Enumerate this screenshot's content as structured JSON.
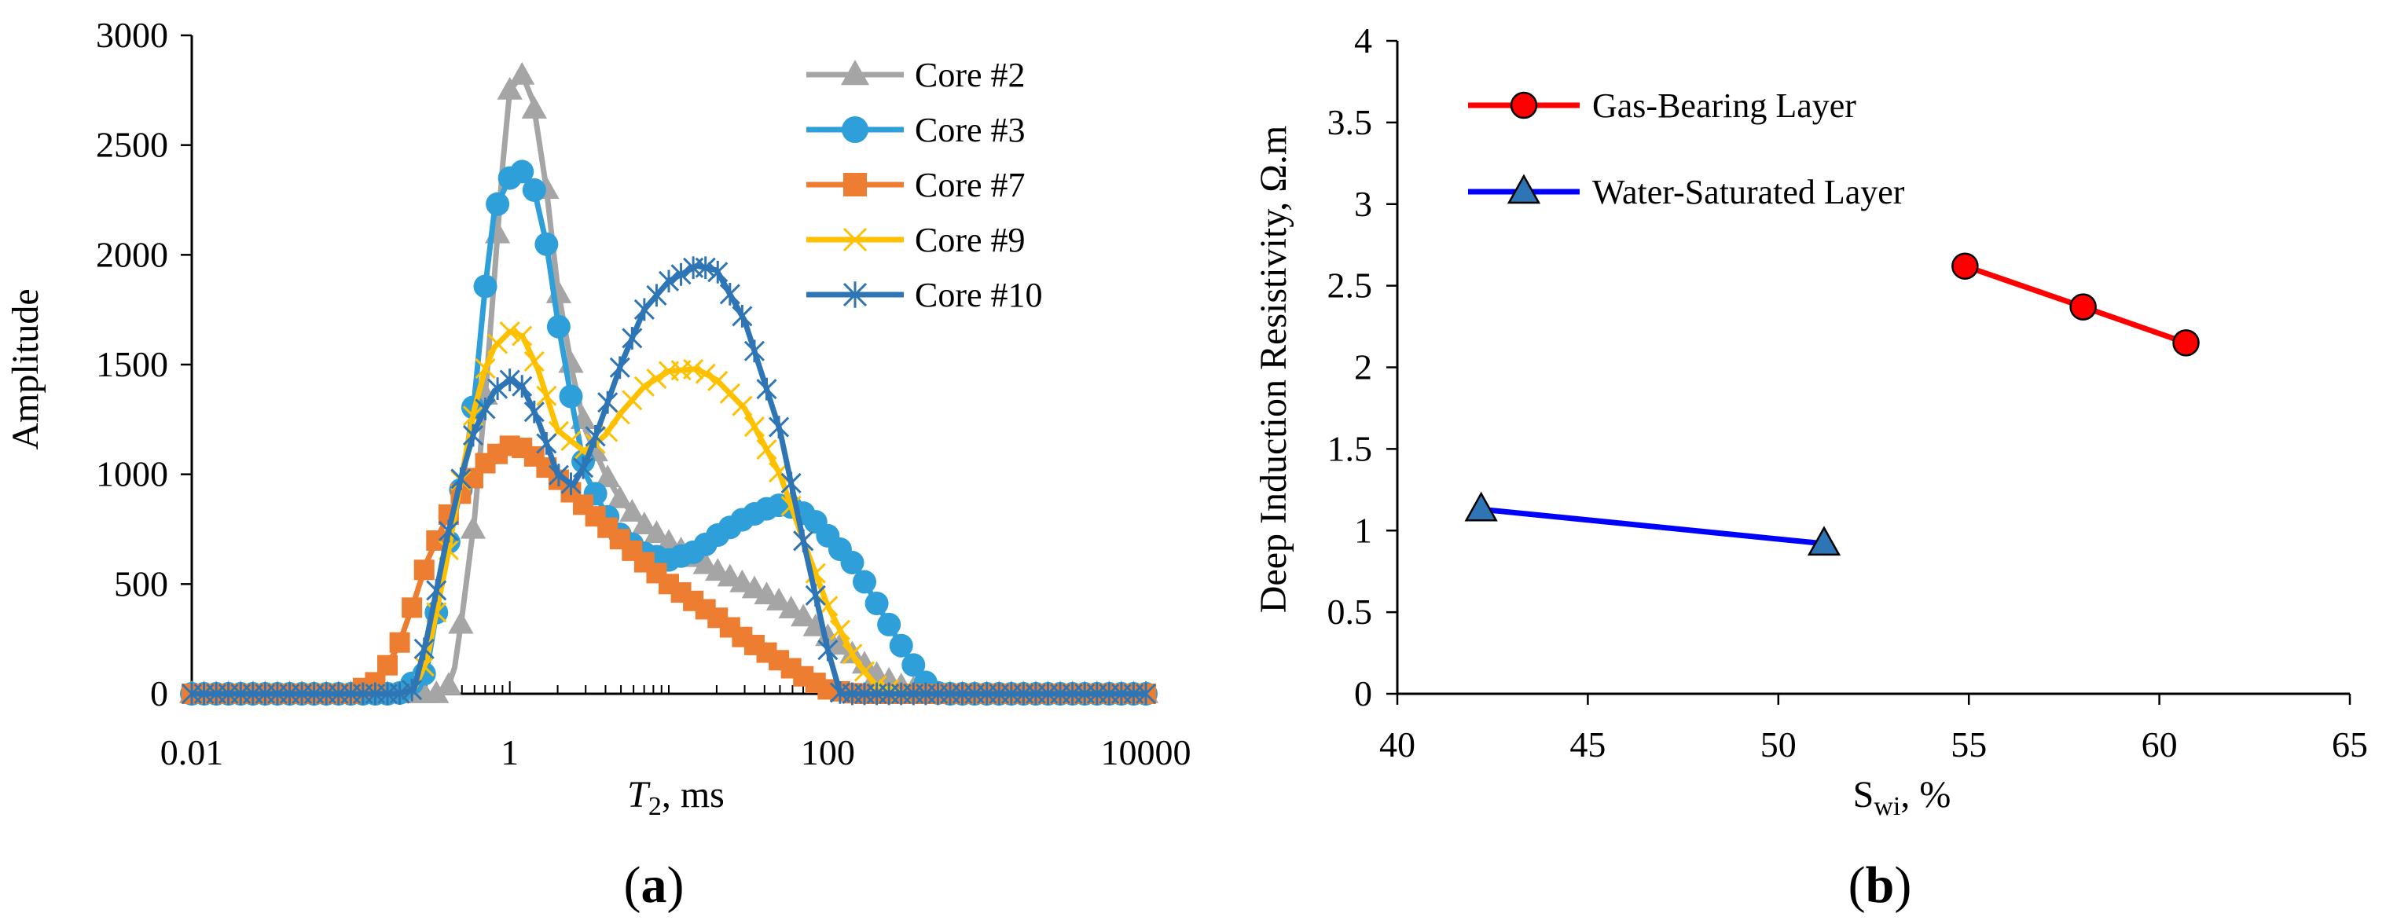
{
  "panels": {
    "a": {
      "label_open": "(",
      "label_letter": "a",
      "label_close": ")"
    },
    "b": {
      "label_open": "(",
      "label_letter": "b",
      "label_close": ")"
    }
  },
  "chart_data": [
    {
      "id": "a",
      "type": "line",
      "title": "",
      "xlabel": "T2, ms",
      "xlabel_italic": "T",
      "xlabel_sub": "2",
      "xlabel_rest": ", ms",
      "ylabel": "Amplitude",
      "xscale": "log",
      "xlim": [
        0.01,
        10000
      ],
      "ylim": [
        0,
        3000
      ],
      "xticks": [
        0.01,
        1,
        100,
        10000
      ],
      "xtick_labels": [
        "0.01",
        "1",
        "100",
        "10000"
      ],
      "yticks": [
        0,
        500,
        1000,
        1500,
        2000,
        2500,
        3000
      ],
      "ytick_labels": [
        "0",
        "500",
        "1000",
        "1500",
        "2000",
        "2500",
        "3000"
      ],
      "legend_position": "top-right",
      "grid": false,
      "series": [
        {
          "name": "Core #2",
          "color": "#a5a5a5",
          "marker": "triangle",
          "points": [
            [
              0.01,
              0
            ],
            [
              0.02,
              0
            ],
            [
              0.05,
              0
            ],
            [
              0.1,
              0
            ],
            [
              0.2,
              0
            ],
            [
              0.3,
              0
            ],
            [
              0.35,
              0
            ],
            [
              0.4,
              10
            ],
            [
              0.45,
              120
            ],
            [
              0.5,
              350
            ],
            [
              0.6,
              800
            ],
            [
              0.7,
              1350
            ],
            [
              0.8,
              1900
            ],
            [
              0.9,
              2400
            ],
            [
              1.0,
              2750
            ],
            [
              1.2,
              2820
            ],
            [
              1.4,
              2700
            ],
            [
              1.7,
              2300
            ],
            [
              2.0,
              1850
            ],
            [
              2.5,
              1450
            ],
            [
              3,
              1200
            ],
            [
              4,
              1000
            ],
            [
              5,
              880
            ],
            [
              7,
              770
            ],
            [
              10,
              690
            ],
            [
              15,
              610
            ],
            [
              20,
              560
            ],
            [
              30,
              500
            ],
            [
              50,
              420
            ],
            [
              70,
              350
            ],
            [
              100,
              260
            ],
            [
              150,
              170
            ],
            [
              200,
              90
            ],
            [
              300,
              30
            ],
            [
              500,
              0
            ],
            [
              1000,
              0
            ],
            [
              2000,
              0
            ],
            [
              5000,
              0
            ],
            [
              10000,
              0
            ]
          ]
        },
        {
          "name": "Core #3",
          "color": "#2e9fd8",
          "marker": "circle",
          "points": [
            [
              0.01,
              0
            ],
            [
              0.05,
              0
            ],
            [
              0.1,
              0
            ],
            [
              0.2,
              0
            ],
            [
              0.3,
              100
            ],
            [
              0.4,
              650
            ],
            [
              0.5,
              950
            ],
            [
              0.6,
              1350
            ],
            [
              0.7,
              1850
            ],
            [
              0.8,
              2200
            ],
            [
              0.9,
              2280
            ],
            [
              1.0,
              2350
            ],
            [
              1.2,
              2380
            ],
            [
              1.4,
              2320
            ],
            [
              1.7,
              2050
            ],
            [
              2.0,
              1700
            ],
            [
              2.5,
              1300
            ],
            [
              3,
              1000
            ],
            [
              4,
              820
            ],
            [
              5,
              720
            ],
            [
              7,
              640
            ],
            [
              10,
              610
            ],
            [
              15,
              650
            ],
            [
              20,
              720
            ],
            [
              30,
              800
            ],
            [
              40,
              840
            ],
            [
              50,
              860
            ],
            [
              60,
              850
            ],
            [
              80,
              800
            ],
            [
              100,
              720
            ],
            [
              150,
              580
            ],
            [
              200,
              420
            ],
            [
              300,
              200
            ],
            [
              400,
              60
            ],
            [
              500,
              0
            ],
            [
              1000,
              0
            ],
            [
              2000,
              0
            ],
            [
              5000,
              0
            ],
            [
              10000,
              0
            ]
          ]
        },
        {
          "name": "Core #7",
          "color": "#ed7d31",
          "marker": "square",
          "points": [
            [
              0.01,
              0
            ],
            [
              0.05,
              0
            ],
            [
              0.1,
              0
            ],
            [
              0.15,
              60
            ],
            [
              0.2,
              220
            ],
            [
              0.25,
              420
            ],
            [
              0.3,
              600
            ],
            [
              0.4,
              800
            ],
            [
              0.5,
              920
            ],
            [
              0.7,
              1050
            ],
            [
              0.9,
              1110
            ],
            [
              1.0,
              1130
            ],
            [
              1.2,
              1120
            ],
            [
              1.5,
              1070
            ],
            [
              2,
              980
            ],
            [
              3,
              850
            ],
            [
              5,
              700
            ],
            [
              7,
              600
            ],
            [
              10,
              500
            ],
            [
              20,
              350
            ],
            [
              30,
              250
            ],
            [
              50,
              150
            ],
            [
              70,
              80
            ],
            [
              100,
              20
            ],
            [
              150,
              0
            ],
            [
              300,
              0
            ],
            [
              1000,
              0
            ],
            [
              3000,
              0
            ],
            [
              10000,
              0
            ]
          ]
        },
        {
          "name": "Core #9",
          "color": "#ffc000",
          "marker": "x",
          "points": [
            [
              0.01,
              0
            ],
            [
              0.05,
              0
            ],
            [
              0.1,
              0
            ],
            [
              0.2,
              0
            ],
            [
              0.25,
              20
            ],
            [
              0.3,
              150
            ],
            [
              0.4,
              600
            ],
            [
              0.5,
              1000
            ],
            [
              0.6,
              1300
            ],
            [
              0.7,
              1480
            ],
            [
              0.8,
              1580
            ],
            [
              1.0,
              1650
            ],
            [
              1.2,
              1630
            ],
            [
              1.5,
              1480
            ],
            [
              2,
              1200
            ],
            [
              3,
              1100
            ],
            [
              4,
              1180
            ],
            [
              5,
              1280
            ],
            [
              7,
              1400
            ],
            [
              10,
              1470
            ],
            [
              15,
              1480
            ],
            [
              20,
              1430
            ],
            [
              30,
              1300
            ],
            [
              50,
              1000
            ],
            [
              70,
              700
            ],
            [
              100,
              400
            ],
            [
              150,
              150
            ],
            [
              200,
              40
            ],
            [
              300,
              0
            ],
            [
              1000,
              0
            ],
            [
              3000,
              0
            ],
            [
              10000,
              0
            ]
          ]
        },
        {
          "name": "Core #10",
          "color": "#2e75b6",
          "marker": "star",
          "points": [
            [
              0.01,
              0
            ],
            [
              0.05,
              0
            ],
            [
              0.1,
              0
            ],
            [
              0.2,
              0
            ],
            [
              0.25,
              20
            ],
            [
              0.3,
              250
            ],
            [
              0.4,
              700
            ],
            [
              0.5,
              1000
            ],
            [
              0.6,
              1200
            ],
            [
              0.8,
              1380
            ],
            [
              1.0,
              1430
            ],
            [
              1.2,
              1400
            ],
            [
              1.5,
              1250
            ],
            [
              2,
              1000
            ],
            [
              2.5,
              950
            ],
            [
              3,
              1050
            ],
            [
              4,
              1300
            ],
            [
              5,
              1500
            ],
            [
              7,
              1750
            ],
            [
              10,
              1880
            ],
            [
              15,
              1950
            ],
            [
              20,
              1930
            ],
            [
              30,
              1700
            ],
            [
              50,
              1200
            ],
            [
              70,
              700
            ],
            [
              100,
              200
            ],
            [
              120,
              0
            ],
            [
              200,
              0
            ],
            [
              1000,
              0
            ],
            [
              3000,
              0
            ],
            [
              10000,
              0
            ]
          ]
        }
      ]
    },
    {
      "id": "b",
      "type": "line",
      "title": "",
      "xlabel": "Swi, %",
      "xlabel_main": "S",
      "xlabel_sub": "wi",
      "xlabel_rest": ", %",
      "ylabel": "Deep Induction Resistivity, Ω.m",
      "xlim": [
        40,
        65
      ],
      "ylim": [
        0,
        4
      ],
      "xticks": [
        40,
        45,
        50,
        55,
        60,
        65
      ],
      "xtick_labels": [
        "40",
        "45",
        "50",
        "55",
        "60",
        "65"
      ],
      "yticks": [
        0,
        0.5,
        1,
        1.5,
        2,
        2.5,
        3,
        3.5,
        4
      ],
      "ytick_labels": [
        "0",
        "0.5",
        "1",
        "1.5",
        "2",
        "2.5",
        "3",
        "3.5",
        "4"
      ],
      "legend_position": "top-left",
      "grid": false,
      "series": [
        {
          "name": "Gas-Bearing Layer",
          "color": "#ff0000",
          "marker_fill": "#ff0000",
          "marker": "circle",
          "points": [
            [
              54.9,
              2.62
            ],
            [
              58.0,
              2.37
            ],
            [
              60.7,
              2.15
            ]
          ]
        },
        {
          "name": "Water-Saturated Layer",
          "color": "#0000ff",
          "marker_fill": "#2e75b6",
          "marker": "triangle",
          "points": [
            [
              42.2,
              1.13
            ],
            [
              51.2,
              0.92
            ]
          ]
        }
      ]
    }
  ]
}
